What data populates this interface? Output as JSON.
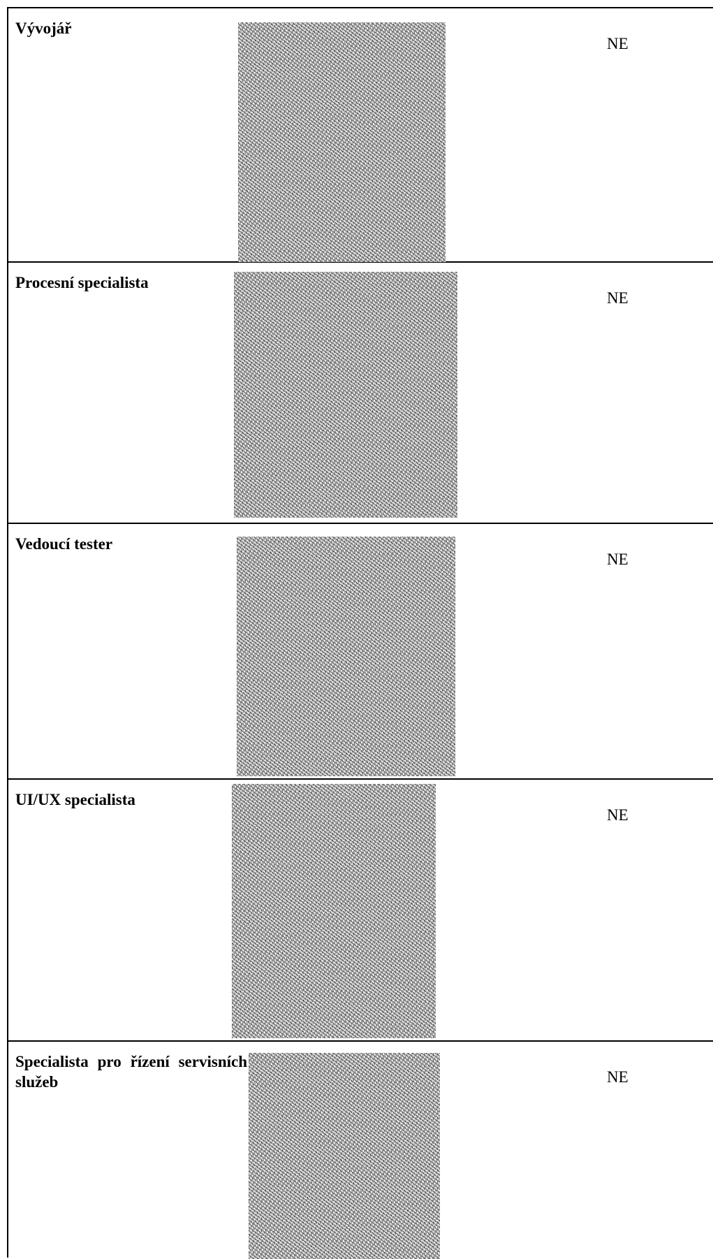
{
  "rows": [
    {
      "role": "Vývojář",
      "status": "NE"
    },
    {
      "role": "Procesní specialista",
      "status": "NE"
    },
    {
      "role": "Vedoucí tester",
      "status": "NE"
    },
    {
      "role": "UI/UX specialista",
      "status": "NE"
    },
    {
      "role": "Specialista pro řízení servisních služeb",
      "status": "NE"
    }
  ]
}
